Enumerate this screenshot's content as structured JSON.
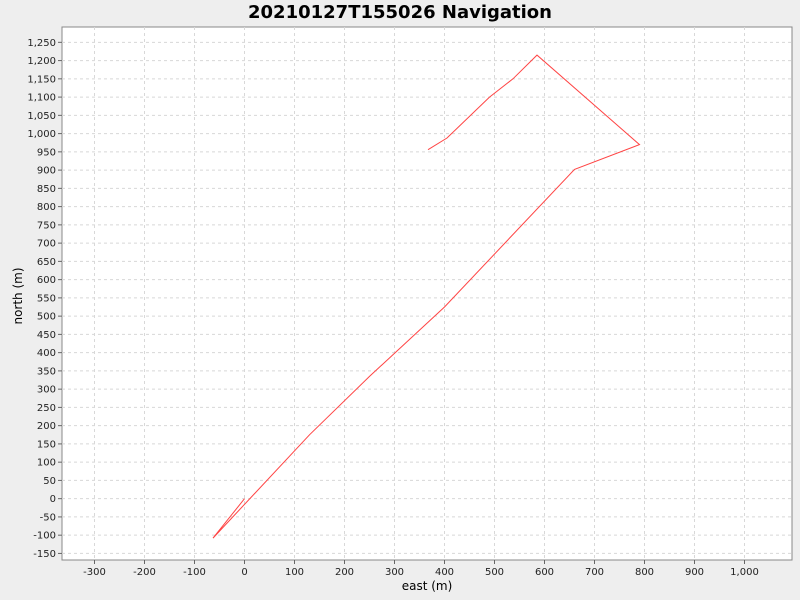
{
  "chart_data": {
    "type": "line",
    "title": "20210127T155026 Navigation",
    "xlabel": "east (m)",
    "ylabel": "north (m)",
    "xlim": [
      -365,
      1095
    ],
    "ylim": [
      -168,
      1292
    ],
    "x_ticks": [
      -300,
      -200,
      -100,
      0,
      100,
      200,
      300,
      400,
      500,
      600,
      700,
      800,
      900,
      1000
    ],
    "x_tick_labels": [
      "-300",
      "-200",
      "-100",
      "0",
      "100",
      "200",
      "300",
      "400",
      "500",
      "600",
      "700",
      "800",
      "900",
      "1,000"
    ],
    "y_ticks": [
      -150,
      -100,
      -50,
      0,
      50,
      100,
      150,
      200,
      250,
      300,
      350,
      400,
      450,
      500,
      550,
      600,
      650,
      700,
      750,
      800,
      850,
      900,
      950,
      1000,
      1050,
      1100,
      1150,
      1200,
      1250
    ],
    "y_tick_labels": [
      "-150",
      "-100",
      "-50",
      "0",
      "50",
      "100",
      "150",
      "200",
      "250",
      "300",
      "350",
      "400",
      "450",
      "500",
      "550",
      "600",
      "650",
      "700",
      "750",
      "800",
      "850",
      "900",
      "950",
      "1,000",
      "1,050",
      "1,100",
      "1,150",
      "1,200",
      "1,250"
    ],
    "grid": true,
    "series": [
      {
        "color": "#ff4444",
        "points": [
          [
            0,
            0
          ],
          [
            -63,
            -108
          ],
          [
            130,
            175
          ],
          [
            250,
            335
          ],
          [
            400,
            525
          ],
          [
            660,
            902
          ],
          [
            790,
            970
          ],
          [
            585,
            1215
          ],
          [
            537,
            1150
          ],
          [
            490,
            1100
          ],
          [
            405,
            988
          ],
          [
            367,
            956
          ]
        ]
      }
    ]
  }
}
